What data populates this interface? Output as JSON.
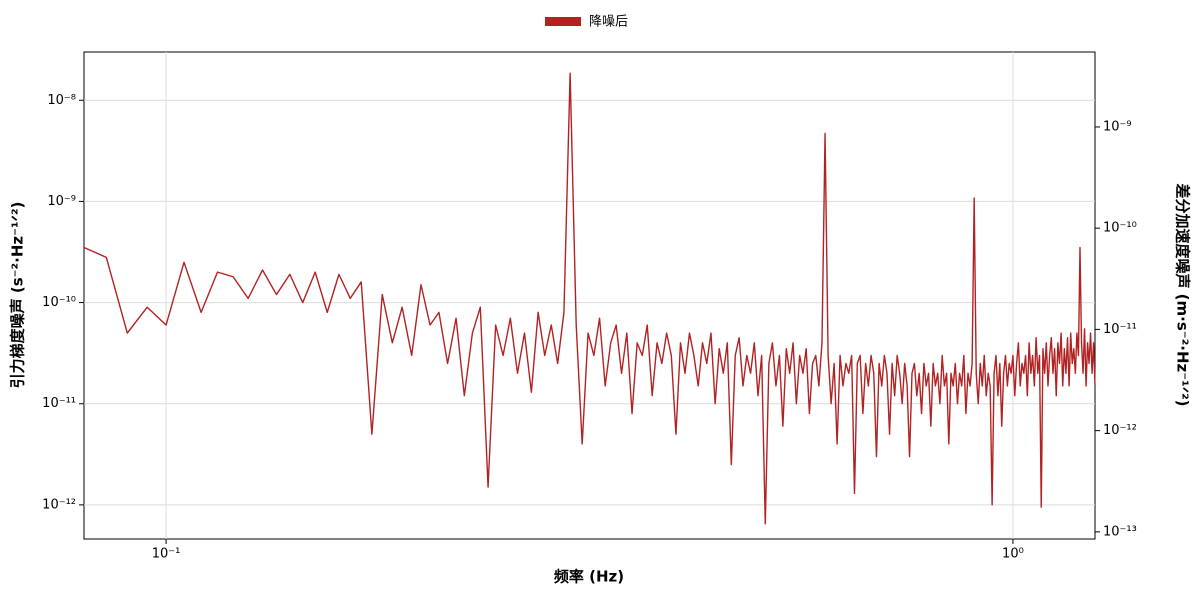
{
  "chart_data": {
    "type": "line",
    "xlabel": "频率 (Hz)",
    "ylabel": "引力梯度噪声 (s⁻²·Hz⁻¹ᐟ²)",
    "y2label": "差分加速度噪声 (m·s⁻²·Hz⁻¹ᐟ²)",
    "xscale": "log",
    "yscale": "log",
    "grid": true,
    "legend": "top-center",
    "xlim": [
      0.08,
      1.25
    ],
    "ylim": [
      4.6e-13,
      3e-08
    ],
    "y2lim": [
      8.5e-14,
      5.5e-09
    ],
    "xticks": [
      {
        "value": 0.1,
        "label": "10⁻¹"
      },
      {
        "value": 1,
        "label": "10⁰"
      }
    ],
    "yticks": [
      {
        "value": 1e-12,
        "label": "10⁻¹²"
      },
      {
        "value": 1e-11,
        "label": "10⁻¹¹"
      },
      {
        "value": 1e-10,
        "label": "10⁻¹⁰"
      },
      {
        "value": 1e-09,
        "label": "10⁻⁹"
      },
      {
        "value": 1e-08,
        "label": "10⁻⁸"
      }
    ],
    "y2ticks": [
      {
        "value": 1e-13,
        "label": "10⁻¹³"
      },
      {
        "value": 1e-12,
        "label": "10⁻¹²"
      },
      {
        "value": 1e-11,
        "label": "10⁻¹¹"
      },
      {
        "value": 1e-10,
        "label": "10⁻¹⁰"
      },
      {
        "value": 1e-09,
        "label": "10⁻⁹"
      }
    ],
    "x": [
      0.08,
      0.085,
      0.09,
      0.095,
      0.1,
      0.105,
      0.11,
      0.115,
      0.12,
      0.125,
      0.13,
      0.135,
      0.14,
      0.145,
      0.15,
      0.155,
      0.16,
      0.165,
      0.17,
      0.175,
      0.18,
      0.185,
      0.19,
      0.195,
      0.2,
      0.205,
      0.21,
      0.215,
      0.22,
      0.225,
      0.23,
      0.235,
      0.24,
      0.245,
      0.25,
      0.255,
      0.26,
      0.265,
      0.27,
      0.275,
      0.28,
      0.285,
      0.29,
      0.295,
      0.3,
      0.305,
      0.31,
      0.315,
      0.32,
      0.325,
      0.33,
      0.335,
      0.34,
      0.345,
      0.35,
      0.355,
      0.36,
      0.365,
      0.37,
      0.375,
      0.38,
      0.385,
      0.39,
      0.395,
      0.4,
      0.405,
      0.41,
      0.415,
      0.42,
      0.425,
      0.43,
      0.435,
      0.44,
      0.445,
      0.45,
      0.455,
      0.46,
      0.465,
      0.47,
      0.475,
      0.48,
      0.485,
      0.49,
      0.495,
      0.5,
      0.505,
      0.51,
      0.515,
      0.52,
      0.525,
      0.53,
      0.535,
      0.54,
      0.545,
      0.55,
      0.555,
      0.56,
      0.565,
      0.57,
      0.575,
      0.58,
      0.585,
      0.59,
      0.595,
      0.6,
      0.605,
      0.61,
      0.615,
      0.62,
      0.625,
      0.63,
      0.635,
      0.64,
      0.645,
      0.65,
      0.655,
      0.66,
      0.665,
      0.67,
      0.675,
      0.68,
      0.685,
      0.69,
      0.695,
      0.7,
      0.705,
      0.71,
      0.715,
      0.72,
      0.725,
      0.73,
      0.735,
      0.74,
      0.745,
      0.75,
      0.755,
      0.76,
      0.765,
      0.77,
      0.775,
      0.78,
      0.785,
      0.79,
      0.795,
      0.8,
      0.805,
      0.81,
      0.815,
      0.82,
      0.825,
      0.83,
      0.835,
      0.84,
      0.845,
      0.85,
      0.855,
      0.86,
      0.865,
      0.87,
      0.875,
      0.88,
      0.885,
      0.89,
      0.895,
      0.9,
      0.905,
      0.91,
      0.915,
      0.92,
      0.925,
      0.93,
      0.935,
      0.94,
      0.945,
      0.95,
      0.955,
      0.96,
      0.965,
      0.97,
      0.975,
      0.98,
      0.985,
      0.99,
      0.995,
      1.0,
      1.005,
      1.01,
      1.015,
      1.02,
      1.025,
      1.03,
      1.035,
      1.04,
      1.045,
      1.05,
      1.055,
      1.06,
      1.065,
      1.07,
      1.075,
      1.08,
      1.085,
      1.09,
      1.095,
      1.1,
      1.105,
      1.11,
      1.115,
      1.12,
      1.125,
      1.13,
      1.135,
      1.14,
      1.145,
      1.15,
      1.155,
      1.16,
      1.165,
      1.17,
      1.175,
      1.18,
      1.185,
      1.19,
      1.195,
      1.2,
      1.205,
      1.21,
      1.215,
      1.22,
      1.225,
      1.23,
      1.235,
      1.24,
      1.245,
      1.25
    ],
    "series": [
      {
        "name": "降噪后",
        "color": "#b22222",
        "values": [
          3.5e-10,
          2.8e-10,
          5e-11,
          9e-11,
          6e-11,
          2.5e-10,
          8e-11,
          2e-10,
          1.8e-10,
          1.1e-10,
          2.1e-10,
          1.2e-10,
          1.9e-10,
          1e-10,
          2e-10,
          8e-11,
          1.9e-10,
          1.1e-10,
          1.6e-10,
          5e-12,
          1.2e-10,
          4e-11,
          9e-11,
          3e-11,
          1.5e-10,
          6e-11,
          8e-11,
          2.5e-11,
          7e-11,
          1.2e-11,
          5e-11,
          9e-11,
          1.5e-12,
          6e-11,
          3e-11,
          7e-11,
          2e-11,
          5e-11,
          1.3e-11,
          8e-11,
          3e-11,
          6e-11,
          2.5e-11,
          8e-11,
          1.85e-08,
          6e-11,
          4e-12,
          5e-11,
          3e-11,
          7e-11,
          1.5e-11,
          4e-11,
          6e-11,
          2e-11,
          5e-11,
          8e-12,
          4e-11,
          3e-11,
          6e-11,
          1.2e-11,
          4e-11,
          2.5e-11,
          5e-11,
          3e-11,
          5e-12,
          4e-11,
          2e-11,
          5e-11,
          3e-11,
          1.5e-11,
          4e-11,
          2.5e-11,
          5e-11,
          1e-11,
          3.5e-11,
          2e-11,
          4e-11,
          2.5e-12,
          3e-11,
          4.5e-11,
          1.5e-11,
          3e-11,
          2e-11,
          4e-11,
          1.2e-11,
          3e-11,
          6.5e-13,
          2.5e-11,
          4e-11,
          1.5e-11,
          3e-11,
          6e-12,
          3.5e-11,
          2e-11,
          4e-11,
          1e-11,
          3e-11,
          2e-11,
          3.5e-11,
          8e-12,
          2.5e-11,
          3e-11,
          1.5e-11,
          4e-11,
          4.7e-09,
          3e-11,
          1e-11,
          2.5e-11,
          4e-12,
          3e-11,
          1.5e-11,
          2.5e-11,
          2e-11,
          3e-11,
          1.3e-12,
          2.5e-11,
          3e-11,
          8e-12,
          2.5e-11,
          1.5e-11,
          3e-11,
          2e-11,
          3e-12,
          2.5e-11,
          1.5e-11,
          3e-11,
          2e-11,
          5e-12,
          2.5e-11,
          1.2e-11,
          3e-11,
          2e-11,
          1e-11,
          2.5e-11,
          1.5e-11,
          3e-12,
          2e-11,
          2.5e-11,
          1.2e-11,
          2e-11,
          8e-12,
          2.5e-11,
          1.5e-11,
          2e-11,
          6e-12,
          2.5e-11,
          1.5e-11,
          2e-11,
          1e-11,
          3e-11,
          1.5e-11,
          2e-11,
          4e-12,
          2e-11,
          1.5e-11,
          2.5e-11,
          1e-11,
          2e-11,
          1.5e-11,
          3e-11,
          8e-12,
          2e-11,
          1.5e-11,
          2.5e-11,
          1.08e-09,
          2e-11,
          1e-11,
          2.5e-11,
          1.5e-11,
          3e-11,
          1.2e-11,
          2e-11,
          1.5e-11,
          1e-12,
          2e-11,
          3e-11,
          1.2e-11,
          2.5e-11,
          6e-12,
          2e-11,
          3e-11,
          1.5e-11,
          2.5e-11,
          2e-11,
          3e-11,
          1.2e-11,
          2.5e-11,
          4e-11,
          1.5e-11,
          2.5e-11,
          2e-11,
          3e-11,
          1.2e-11,
          4e-11,
          2e-11,
          3e-11,
          1.5e-11,
          4.5e-11,
          2e-11,
          3e-11,
          9.5e-13,
          3.5e-11,
          2e-11,
          4e-11,
          1.5e-11,
          3e-11,
          4.5e-11,
          2e-11,
          3.5e-11,
          1.2e-11,
          4e-11,
          2.5e-11,
          5e-11,
          1.5e-11,
          3.5e-11,
          2e-11,
          4.5e-11,
          1.5e-11,
          5e-11,
          2.5e-11,
          3.5e-11,
          2e-11,
          5e-11,
          3e-11,
          3.5e-10,
          4e-11,
          2e-11,
          5.5e-11,
          1.5e-11,
          4e-11,
          2.5e-11,
          5e-11,
          2e-11,
          4e-11,
          1.5e-11
        ]
      }
    ]
  }
}
